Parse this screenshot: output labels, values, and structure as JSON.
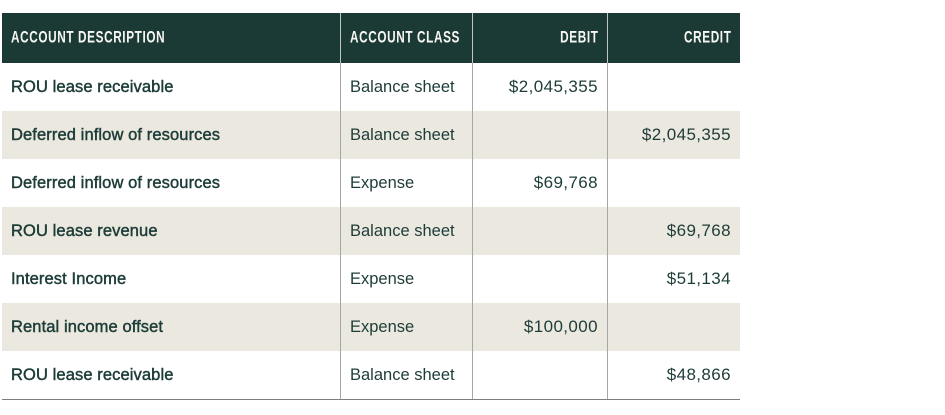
{
  "colors": {
    "header_bg": "#1b3a35",
    "header_text": "#f8f7f3",
    "body_text": "#1d3c38",
    "stripe_bg": "#ebe8e0",
    "column_divider": "#a6a6a6",
    "table_bottom_border": "#7d7d7d"
  },
  "table": {
    "columns": [
      {
        "label": "ACCOUNT DESCRIPTION",
        "align": "left"
      },
      {
        "label": "ACCOUNT CLASS",
        "align": "left"
      },
      {
        "label": "DEBIT",
        "align": "right"
      },
      {
        "label": "CREDIT",
        "align": "right"
      }
    ],
    "rows": [
      {
        "description": "ROU lease receivable",
        "account_class": "Balance sheet",
        "debit": "$2,045,355",
        "credit": ""
      },
      {
        "description": "Deferred inflow of resources",
        "account_class": "Balance sheet",
        "debit": "",
        "credit": "$2,045,355"
      },
      {
        "description": "Deferred inflow of resources",
        "account_class": "Expense",
        "debit": "$69,768",
        "credit": ""
      },
      {
        "description": "ROU lease revenue",
        "account_class": "Balance sheet",
        "debit": "",
        "credit": "$69,768"
      },
      {
        "description": "Interest Income",
        "account_class": "Expense",
        "debit": "",
        "credit": "$51,134"
      },
      {
        "description": "Rental income offset",
        "account_class": "Expense",
        "debit": "$100,000",
        "credit": ""
      },
      {
        "description": "ROU lease receivable",
        "account_class": "Balance sheet",
        "debit": "",
        "credit": "$48,866"
      }
    ]
  }
}
